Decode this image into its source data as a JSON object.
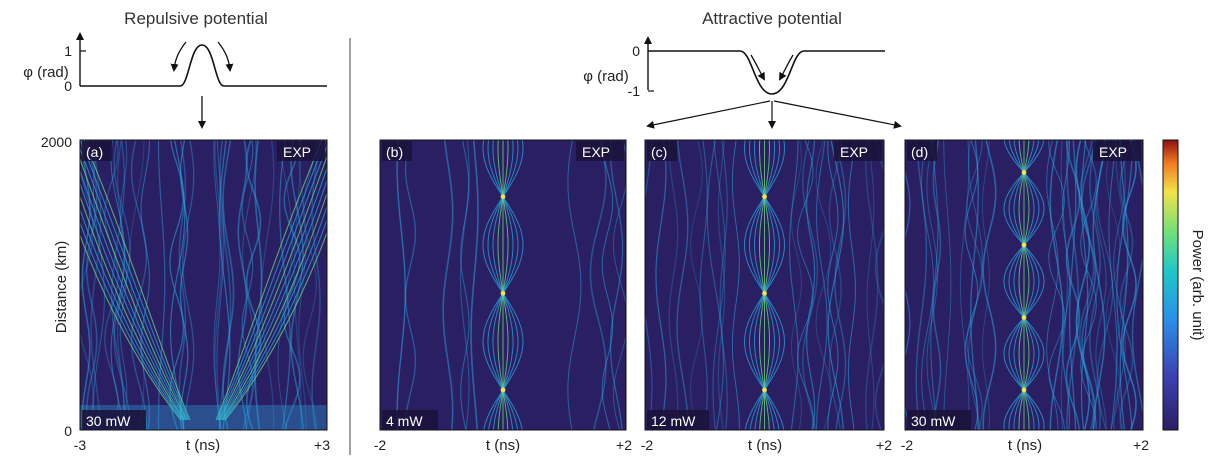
{
  "figure": {
    "left_title": "Repulsive potential",
    "right_title": "Attractive potential",
    "phi_label": "φ (rad)",
    "repulsive_ticks": [
      "1",
      "0"
    ],
    "attractive_ticks": [
      "0",
      "-1"
    ],
    "colorbar_label": "Power (arb. unit)",
    "colors": {
      "background": "#2b1f63",
      "trace": "#27a7e0",
      "bright": "#6fe07a",
      "hot": "#f2e34a"
    }
  },
  "chart_data": [
    {
      "type": "heatmap",
      "panel": "(a)",
      "tag": "EXP",
      "power": "30 mW",
      "xlabel": "t (ns)",
      "xticks": [
        "-3",
        "+3"
      ],
      "ylabel": "Distance (km)",
      "yticks": [
        "2000",
        "0"
      ],
      "xlim": [
        -3,
        3
      ],
      "ylim": [
        0,
        2000
      ]
    },
    {
      "type": "heatmap",
      "panel": "(b)",
      "tag": "EXP",
      "power": "4 mW",
      "xlabel": "t (ns)",
      "xticks": [
        "-2",
        "+2"
      ],
      "xlim": [
        -2,
        2
      ],
      "ylim": [
        0,
        2000
      ]
    },
    {
      "type": "heatmap",
      "panel": "(c)",
      "tag": "EXP",
      "power": "12 mW",
      "xlabel": "t (ns)",
      "xticks": [
        "-2",
        "+2"
      ],
      "xlim": [
        -2,
        2
      ],
      "ylim": [
        0,
        2000
      ]
    },
    {
      "type": "heatmap",
      "panel": "(d)",
      "tag": "EXP",
      "power": "30 mW",
      "xlabel": "t (ns)",
      "xticks": [
        "-2",
        "+2"
      ],
      "xlim": [
        -2,
        2
      ],
      "ylim": [
        0,
        2000
      ]
    }
  ]
}
